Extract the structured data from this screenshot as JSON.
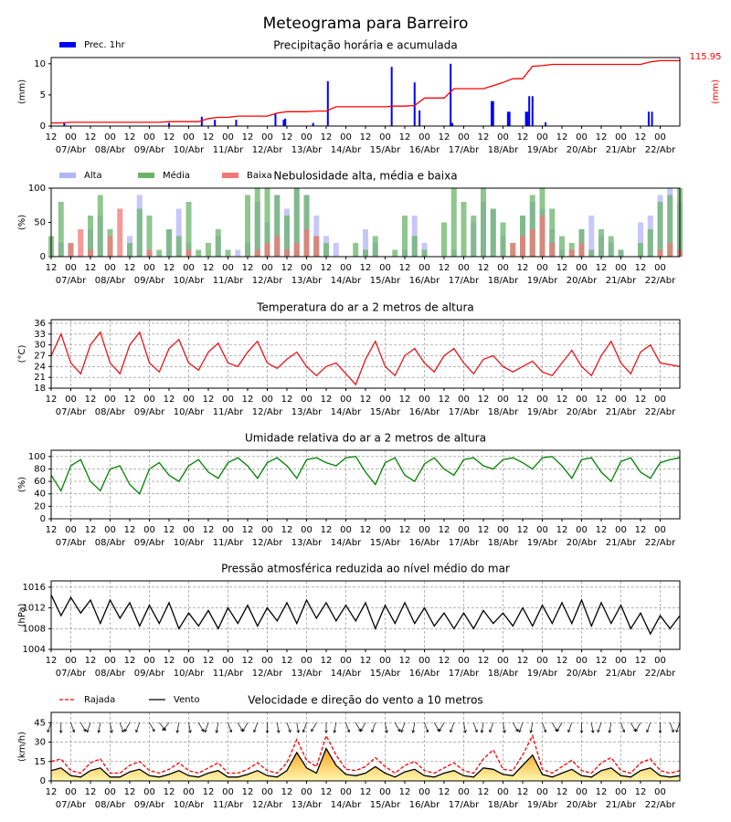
{
  "title": "Meteograma para Barreiro",
  "time": {
    "x": [
      0,
      6,
      12,
      18,
      24,
      30,
      36,
      42,
      48,
      54,
      60,
      66,
      72,
      78,
      84,
      90,
      96,
      102,
      108,
      114,
      120,
      126,
      132,
      138,
      144,
      150,
      156,
      162,
      168,
      174,
      180,
      186,
      192,
      198,
      204,
      210,
      216,
      222,
      228,
      234,
      240,
      246,
      252,
      258,
      264,
      270,
      276,
      282,
      288,
      294,
      300,
      306,
      312,
      318,
      324,
      330,
      336,
      342,
      348,
      354,
      360,
      366,
      372,
      378,
      384
    ],
    "xlim": [
      0,
      384
    ],
    "xticks": [
      {
        "value": 0,
        "label": "12"
      },
      {
        "value": 12,
        "label": "00"
      },
      {
        "value": 24,
        "label": "12"
      },
      {
        "value": 36,
        "label": "00"
      },
      {
        "value": 48,
        "label": "12"
      },
      {
        "value": 60,
        "label": "00"
      },
      {
        "value": 72,
        "label": "12"
      },
      {
        "value": 84,
        "label": "00"
      },
      {
        "value": 96,
        "label": "12"
      },
      {
        "value": 108,
        "label": "00"
      },
      {
        "value": 120,
        "label": "12"
      },
      {
        "value": 132,
        "label": "00"
      },
      {
        "value": 144,
        "label": "12"
      },
      {
        "value": 156,
        "label": "00"
      },
      {
        "value": 168,
        "label": "12"
      },
      {
        "value": 180,
        "label": "00"
      },
      {
        "value": 192,
        "label": "12"
      },
      {
        "value": 204,
        "label": "00"
      },
      {
        "value": 216,
        "label": "12"
      },
      {
        "value": 228,
        "label": "00"
      },
      {
        "value": 240,
        "label": "12"
      },
      {
        "value": 252,
        "label": "00"
      },
      {
        "value": 264,
        "label": "12"
      },
      {
        "value": 276,
        "label": "00"
      },
      {
        "value": 288,
        "label": "12"
      },
      {
        "value": 300,
        "label": "00"
      },
      {
        "value": 312,
        "label": "12"
      },
      {
        "value": 324,
        "label": "00"
      },
      {
        "value": 336,
        "label": "12"
      },
      {
        "value": 348,
        "label": "00"
      },
      {
        "value": 360,
        "label": "12"
      },
      {
        "value": 372,
        "label": "00"
      }
    ],
    "date_ticks": [
      {
        "value": 12,
        "label": "07/Abr"
      },
      {
        "value": 36,
        "label": "08/Abr"
      },
      {
        "value": 60,
        "label": "09/Abr"
      },
      {
        "value": 84,
        "label": "10/Abr"
      },
      {
        "value": 108,
        "label": "11/Abr"
      },
      {
        "value": 132,
        "label": "12/Abr"
      },
      {
        "value": 156,
        "label": "13/Abr"
      },
      {
        "value": 180,
        "label": "14/Abr"
      },
      {
        "value": 204,
        "label": "15/Abr"
      },
      {
        "value": 228,
        "label": "16/Abr"
      },
      {
        "value": 252,
        "label": "17/Abr"
      },
      {
        "value": 276,
        "label": "18/Abr"
      },
      {
        "value": 300,
        "label": "19/Abr"
      },
      {
        "value": 324,
        "label": "20/Abr"
      },
      {
        "value": 348,
        "label": "21/Abr"
      },
      {
        "value": 372,
        "label": "22/Abr"
      }
    ]
  },
  "chart_data": [
    {
      "type": "bar",
      "title": "Precipitação horária e acumulada",
      "ylabel": "(mm)",
      "y2label": "(mm)",
      "annotation": "115.95",
      "ylim": [
        0,
        11
      ],
      "yticks": [
        0,
        5,
        10
      ],
      "grid": false,
      "series": [
        {
          "name": "Prec. 1hr",
          "color": "#0000ff",
          "x": [
            8,
            72,
            92,
            100,
            113,
            137,
            142,
            143,
            160,
            169,
            208,
            222,
            225,
            244,
            245,
            269,
            270,
            279,
            280,
            290,
            291,
            292,
            294,
            302,
            365,
            367
          ],
          "values": [
            0.5,
            0.5,
            1.5,
            1,
            1,
            2,
            1,
            1.2,
            0.5,
            7.2,
            9.5,
            7,
            2.5,
            10,
            0.5,
            4,
            4,
            2.3,
            2.3,
            2.3,
            2.3,
            4.8,
            4.8,
            0.6,
            2.3,
            2.3
          ]
        },
        {
          "type": "line",
          "color": "#ff0000",
          "values": [
            0.5,
            0.5,
            0.6,
            0.6,
            0.6,
            0.6,
            0.6,
            0.6,
            0.6,
            0.6,
            0.6,
            0.6,
            0.7,
            0.7,
            0.7,
            0.7,
            1.2,
            1.4,
            1.4,
            1.6,
            1.6,
            1.6,
            1.6,
            2.1,
            2.3,
            2.3,
            2.3,
            2.4,
            2.4,
            3.1,
            3.1,
            3.1,
            3.1,
            3.1,
            3.1,
            3.2,
            3.2,
            3.3,
            4.5,
            4.5,
            4.5,
            6.0,
            6.0,
            6.0,
            6.0,
            6.5,
            7.0,
            7.6,
            7.6,
            9.6,
            9.7,
            9.9,
            9.9,
            9.9,
            9.9,
            9.9,
            9.9,
            9.9,
            9.9,
            9.9,
            9.9,
            10.3,
            10.5,
            10.5,
            10.5
          ]
        }
      ]
    },
    {
      "type": "bar",
      "title": "Nebulosidade alta, média e baixa",
      "ylabel": "(%)",
      "ylim": [
        0,
        100
      ],
      "yticks": [
        0,
        50,
        100
      ],
      "grid": false,
      "series": [
        {
          "name": "Alta",
          "color": "#b4b4f8",
          "values": [
            0,
            20,
            0,
            0,
            40,
            60,
            0,
            0,
            30,
            90,
            10,
            0,
            40,
            70,
            20,
            0,
            0,
            30,
            0,
            10,
            20,
            80,
            50,
            90,
            70,
            100,
            90,
            60,
            30,
            20,
            0,
            0,
            40,
            20,
            0,
            0,
            10,
            60,
            20,
            0,
            0,
            10,
            0,
            50,
            80,
            70,
            30,
            0,
            60,
            80,
            70,
            40,
            10,
            0,
            40,
            60,
            30,
            20,
            10,
            0,
            50,
            60,
            90,
            100,
            80
          ]
        },
        {
          "name": "Média",
          "color": "#6ab46a",
          "values": [
            30,
            80,
            20,
            0,
            60,
            90,
            40,
            0,
            20,
            70,
            60,
            10,
            40,
            30,
            80,
            10,
            20,
            40,
            10,
            0,
            90,
            100,
            100,
            90,
            60,
            100,
            90,
            30,
            20,
            0,
            0,
            20,
            10,
            30,
            0,
            10,
            60,
            30,
            10,
            0,
            50,
            100,
            80,
            60,
            100,
            70,
            50,
            20,
            60,
            90,
            100,
            70,
            30,
            20,
            40,
            10,
            40,
            30,
            10,
            0,
            20,
            40,
            80,
            90,
            100
          ]
        },
        {
          "name": "Baixa",
          "color": "#f07878",
          "values": [
            0,
            0,
            20,
            40,
            10,
            0,
            30,
            70,
            0,
            0,
            10,
            0,
            0,
            0,
            10,
            0,
            0,
            0,
            0,
            0,
            0,
            10,
            20,
            30,
            10,
            20,
            40,
            30,
            0,
            0,
            0,
            0,
            0,
            0,
            0,
            0,
            0,
            0,
            0,
            0,
            0,
            0,
            0,
            0,
            0,
            0,
            0,
            20,
            30,
            40,
            60,
            20,
            0,
            10,
            20,
            0,
            0,
            0,
            0,
            0,
            0,
            0,
            10,
            20,
            10
          ]
        }
      ]
    },
    {
      "type": "line",
      "title": "Temperatura do ar a 2 metros de altura",
      "ylabel": "(°C)",
      "ylim": [
        18,
        37
      ],
      "yticks": [
        18,
        21,
        24,
        27,
        30,
        33,
        36
      ],
      "grid": true,
      "series": [
        {
          "color": "#e8141c",
          "values": [
            27,
            33,
            25,
            22,
            30,
            33.5,
            25,
            22,
            30,
            33.5,
            25,
            22.5,
            29,
            31.5,
            25,
            23,
            28,
            30.5,
            25,
            24,
            28,
            31,
            25,
            23.5,
            26,
            28,
            24,
            21.5,
            24,
            25,
            22,
            19,
            26,
            31,
            24,
            21.5,
            27,
            29,
            25,
            22.5,
            27,
            29,
            25,
            22,
            26,
            27,
            24,
            22.5,
            24,
            25.5,
            22.5,
            21.5,
            25,
            28.5,
            24,
            21.5,
            27,
            31,
            25,
            22,
            28,
            30,
            25,
            24.5,
            24
          ]
        }
      ]
    },
    {
      "type": "line",
      "title": "Umidade relativa do ar a 2 metros de altura",
      "ylabel": "(%)",
      "ylim": [
        0,
        110
      ],
      "yticks": [
        0,
        20,
        40,
        60,
        80,
        100
      ],
      "grid": true,
      "series": [
        {
          "color": "#008000",
          "values": [
            70,
            45,
            85,
            95,
            60,
            45,
            80,
            85,
            55,
            40,
            80,
            90,
            70,
            60,
            85,
            95,
            75,
            65,
            90,
            98,
            85,
            65,
            90,
            98,
            85,
            65,
            95,
            98,
            90,
            85,
            98,
            100,
            75,
            55,
            90,
            98,
            70,
            60,
            88,
            98,
            80,
            70,
            95,
            98,
            85,
            80,
            95,
            98,
            90,
            80,
            98,
            100,
            85,
            65,
            95,
            98,
            75,
            60,
            92,
            98,
            75,
            65,
            90,
            95,
            98
          ]
        }
      ]
    },
    {
      "type": "line",
      "title": "Pressão atmosférica reduzida ao nível médio do mar",
      "ylabel": "(hPa)",
      "ylim": [
        1004,
        1017.2
      ],
      "yticks": [
        1004,
        1008,
        1012,
        1016
      ],
      "grid": true,
      "series": [
        {
          "color": "#000000",
          "values": [
            1014.5,
            1010.5,
            1014,
            1011,
            1013.5,
            1009,
            1013.5,
            1010,
            1013,
            1008.5,
            1012.5,
            1009,
            1013,
            1008,
            1011,
            1008.5,
            1011.5,
            1008,
            1012,
            1009,
            1012.5,
            1008.5,
            1012,
            1009.5,
            1013,
            1009,
            1013.5,
            1010,
            1013,
            1009.5,
            1012.5,
            1009.5,
            1013,
            1008,
            1012.5,
            1009,
            1013,
            1009,
            1012,
            1008.5,
            1011,
            1008,
            1011,
            1008,
            1011.5,
            1009,
            1011,
            1008.5,
            1012,
            1008.5,
            1012.5,
            1009,
            1013,
            1009,
            1013.5,
            1008.5,
            1013,
            1009,
            1012.5,
            1008,
            1011,
            1007,
            1010.5,
            1008,
            1010.5
          ]
        }
      ]
    },
    {
      "type": "line",
      "title": "Velocidade e direção do vento a 10 metros",
      "ylabel": "(km/h)",
      "ylim": [
        0,
        53
      ],
      "yticks": [
        0,
        15,
        30,
        45
      ],
      "grid": true,
      "series": [
        {
          "name": "Rajada",
          "color": "#ff0000",
          "style": "dashed",
          "values": [
            15,
            17,
            8,
            6,
            14,
            17,
            6,
            6,
            12,
            15,
            8,
            6,
            9,
            14,
            8,
            6,
            10,
            14,
            6,
            6,
            9,
            14,
            8,
            6,
            14,
            32,
            16,
            11,
            35,
            20,
            9,
            8,
            11,
            18,
            11,
            6,
            12,
            15,
            8,
            6,
            10,
            14,
            8,
            6,
            17,
            24,
            9,
            8,
            20,
            35,
            9,
            6,
            11,
            16,
            8,
            6,
            14,
            18,
            8,
            6,
            14,
            17,
            8,
            6,
            8
          ]
        },
        {
          "name": "Vento",
          "color": "#000000",
          "fill": true,
          "values": [
            8,
            10,
            4,
            3,
            8,
            10,
            3,
            3,
            7,
            9,
            4,
            3,
            5,
            8,
            4,
            3,
            6,
            8,
            3,
            3,
            5,
            8,
            4,
            3,
            8,
            22,
            10,
            6,
            25,
            12,
            5,
            4,
            6,
            11,
            6,
            3,
            7,
            9,
            4,
            3,
            6,
            8,
            4,
            3,
            10,
            9,
            5,
            4,
            12,
            20,
            5,
            3,
            6,
            9,
            4,
            3,
            8,
            10,
            4,
            3,
            8,
            10,
            4,
            3,
            4
          ]
        }
      ],
      "directions": [
        200,
        180,
        160,
        150,
        200,
        190,
        170,
        160,
        210,
        200,
        150,
        140,
        220,
        190,
        170,
        150,
        200,
        190,
        160,
        150,
        210,
        200,
        180,
        170,
        160,
        170,
        200,
        210,
        180,
        190,
        160,
        150,
        210,
        200,
        170,
        150,
        200,
        190,
        160,
        150,
        210,
        200,
        170,
        160,
        190,
        200,
        170,
        150,
        200,
        190,
        160,
        150,
        210,
        200,
        180,
        170,
        200,
        190,
        160,
        150,
        210,
        200,
        180,
        160,
        200
      ]
    }
  ]
}
